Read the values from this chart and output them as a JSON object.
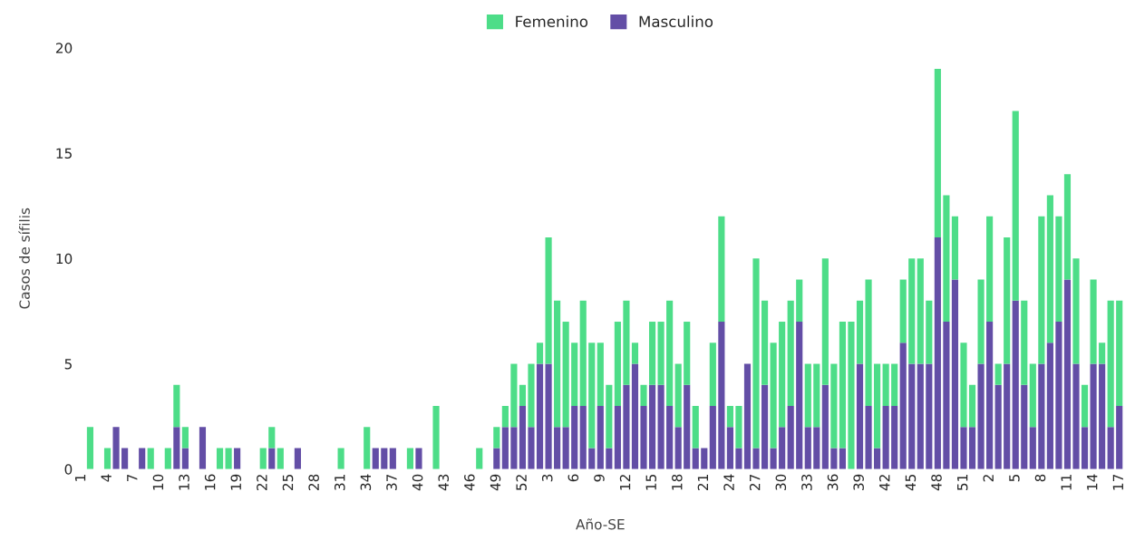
{
  "chart_data": {
    "type": "bar",
    "stacked": true,
    "xlabel": "Año-SE",
    "ylabel": "Casos de sífilis",
    "categories": [
      "1",
      null,
      null,
      "4",
      null,
      null,
      "7",
      null,
      null,
      "10",
      null,
      null,
      "13",
      null,
      null,
      "16",
      null,
      null,
      "19",
      null,
      null,
      "22",
      null,
      null,
      "25",
      null,
      null,
      "28",
      null,
      null,
      "31",
      null,
      null,
      "34",
      null,
      null,
      "37",
      null,
      null,
      "40",
      null,
      null,
      "43",
      null,
      null,
      "46",
      null,
      null,
      "49",
      null,
      null,
      "52",
      null,
      null,
      "3",
      null,
      null,
      "6",
      null,
      null,
      "9",
      null,
      null,
      "12",
      null,
      null,
      "15",
      null,
      null,
      "18",
      null,
      null,
      "21",
      null,
      null,
      "24",
      null,
      null,
      "27",
      null,
      null,
      "30",
      null,
      null,
      "33",
      null,
      null,
      "36",
      null,
      null,
      "39",
      null,
      null,
      "42",
      null,
      null,
      "45",
      null,
      null,
      "48",
      null,
      null,
      "51",
      null,
      null,
      "2",
      null,
      null,
      "5",
      null,
      null,
      "8",
      null,
      null,
      "11",
      null,
      null,
      "14",
      null,
      null,
      "17"
    ],
    "series": [
      {
        "name": "Masculino",
        "color": "#634ea6",
        "values": [
          0,
          0,
          0,
          0,
          2,
          1,
          0,
          1,
          0,
          0,
          0,
          2,
          1,
          0,
          2,
          0,
          0,
          0,
          1,
          0,
          0,
          0,
          1,
          0,
          0,
          1,
          0,
          0,
          0,
          0,
          0,
          0,
          0,
          0,
          1,
          1,
          1,
          0,
          0,
          1,
          0,
          0,
          0,
          0,
          0,
          0,
          0,
          0,
          1,
          2,
          2,
          3,
          2,
          5,
          5,
          2,
          2,
          3,
          3,
          1,
          3,
          1,
          3,
          4,
          5,
          3,
          4,
          4,
          3,
          2,
          4,
          1,
          1,
          3,
          7,
          2,
          1,
          5,
          1,
          4,
          1,
          2,
          3,
          7,
          2,
          2,
          4,
          1,
          1,
          0,
          5,
          3,
          1,
          3,
          3,
          6,
          5,
          5,
          5,
          11,
          7,
          9,
          2,
          2,
          5,
          7,
          4,
          5,
          8,
          4,
          2,
          5,
          6,
          7,
          9,
          5,
          2,
          5,
          5,
          2,
          3
        ]
      },
      {
        "name": "Femenino",
        "color": "#4ddd88",
        "values": [
          0,
          2,
          0,
          1,
          0,
          0,
          0,
          0,
          1,
          0,
          1,
          2,
          1,
          0,
          0,
          0,
          1,
          1,
          0,
          0,
          0,
          1,
          1,
          1,
          0,
          0,
          0,
          0,
          0,
          0,
          1,
          0,
          0,
          2,
          0,
          0,
          0,
          0,
          1,
          0,
          0,
          3,
          0,
          0,
          0,
          0,
          1,
          0,
          1,
          1,
          3,
          1,
          3,
          1,
          6,
          6,
          5,
          3,
          5,
          5,
          3,
          3,
          4,
          4,
          1,
          1,
          3,
          3,
          5,
          3,
          3,
          2,
          0,
          3,
          5,
          1,
          2,
          0,
          9,
          4,
          5,
          5,
          5,
          2,
          3,
          3,
          6,
          4,
          6,
          7,
          3,
          6,
          4,
          2,
          2,
          3,
          5,
          5,
          3,
          8,
          6,
          3,
          4,
          2,
          4,
          5,
          1,
          6,
          9,
          4,
          3,
          7,
          7,
          5,
          5,
          5,
          2,
          4,
          1,
          6,
          5
        ]
      }
    ],
    "ylim": [
      0,
      20
    ],
    "yticks": [
      0,
      5,
      10,
      15,
      20
    ],
    "grid": false,
    "legend": "top"
  }
}
